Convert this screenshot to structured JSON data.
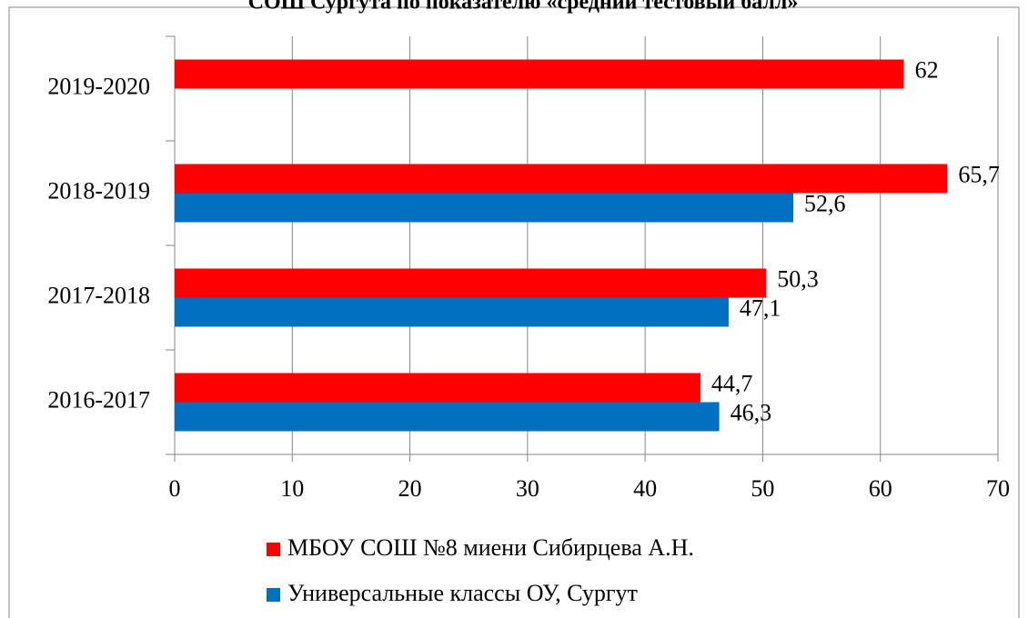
{
  "chart_data": {
    "type": "bar",
    "orientation": "horizontal",
    "title": "СОШ Сургута по показателю «средний тестовый балл»",
    "categories": [
      "2016-2017",
      "2017-2018",
      "2018-2019",
      "2019-2020"
    ],
    "series": [
      {
        "name": "МБОУ СОШ №8 миени Сибирцева А.Н.",
        "color": "#ff0000",
        "values": [
          44.7,
          50.3,
          65.7,
          62
        ],
        "value_labels": [
          "44,7",
          "50,3",
          "65,7",
          "62"
        ]
      },
      {
        "name": "Универсальные классы ОУ, Сургут",
        "color": "#0070c0",
        "values": [
          46.3,
          47.1,
          52.6,
          null
        ],
        "value_labels": [
          "46,3",
          "47,1",
          "52,6",
          null
        ]
      }
    ],
    "xlim": [
      0,
      70
    ],
    "xticks": [
      0,
      10,
      20,
      30,
      40,
      50,
      60,
      70
    ],
    "grid": true,
    "legend": "bottom"
  }
}
